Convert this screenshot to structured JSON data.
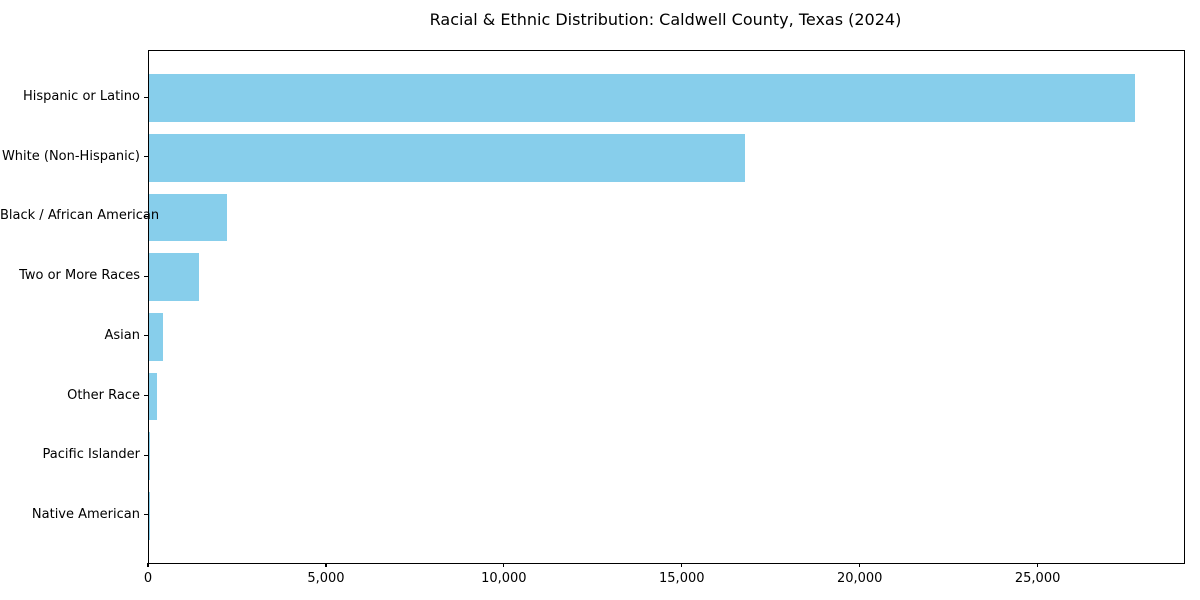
{
  "chart_data": {
    "type": "bar",
    "orientation": "horizontal",
    "title": "Racial & Ethnic Distribution: Caldwell County, Texas (2024)",
    "xlabel": "",
    "ylabel": "",
    "categories": [
      "Hispanic or Latino",
      "White (Non-Hispanic)",
      "Black / African American",
      "Two or More Races",
      "Asian",
      "Other Race",
      "Pacific Islander",
      "Native American"
    ],
    "values": [
      27700,
      16750,
      2200,
      1400,
      390,
      230,
      20,
      10
    ],
    "xlim": [
      0,
      29085
    ],
    "x_ticks": [
      0,
      5000,
      10000,
      15000,
      20000,
      25000
    ],
    "x_tick_labels": [
      "0",
      "5,000",
      "10,000",
      "15,000",
      "20,000",
      "25,000"
    ],
    "bar_color": "#87CEEB",
    "text_color": "#000000",
    "grid": false,
    "legend": false
  }
}
